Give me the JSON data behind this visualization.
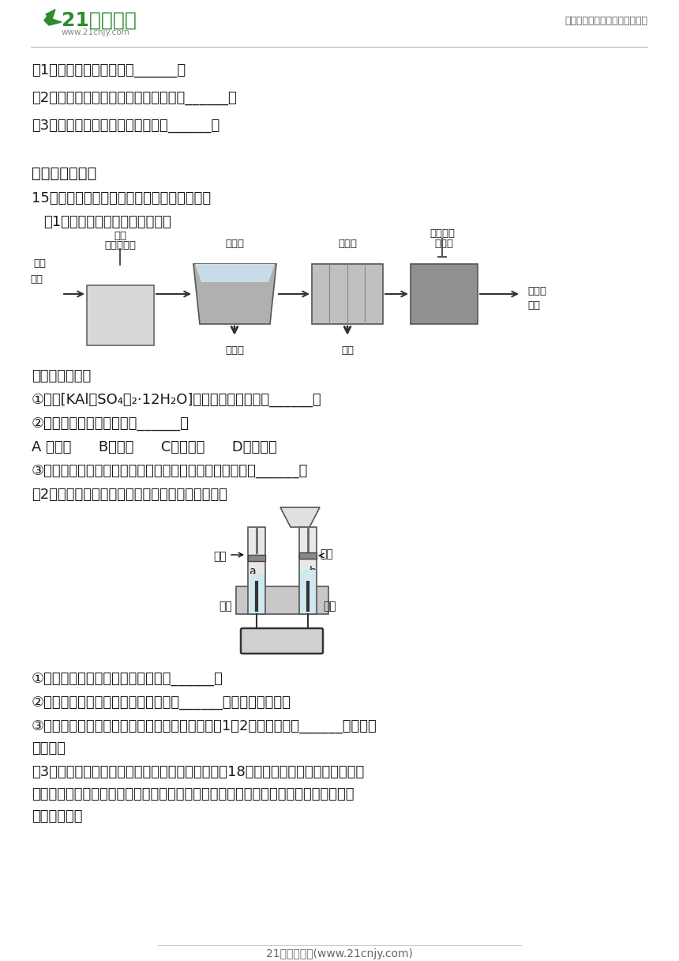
{
  "bg_color": "#ffffff",
  "text_color": "#1a1a1a",
  "green_color": "#2e8b2e",
  "gray_line": "#999999",
  "title_right": "中小学教育资源及组卷应用平台",
  "logo_text": "21世纪教育",
  "logo_sub": "www.21cnjy.com",
  "footer_text": "21世纪教育网(www.21cnjy.com)"
}
